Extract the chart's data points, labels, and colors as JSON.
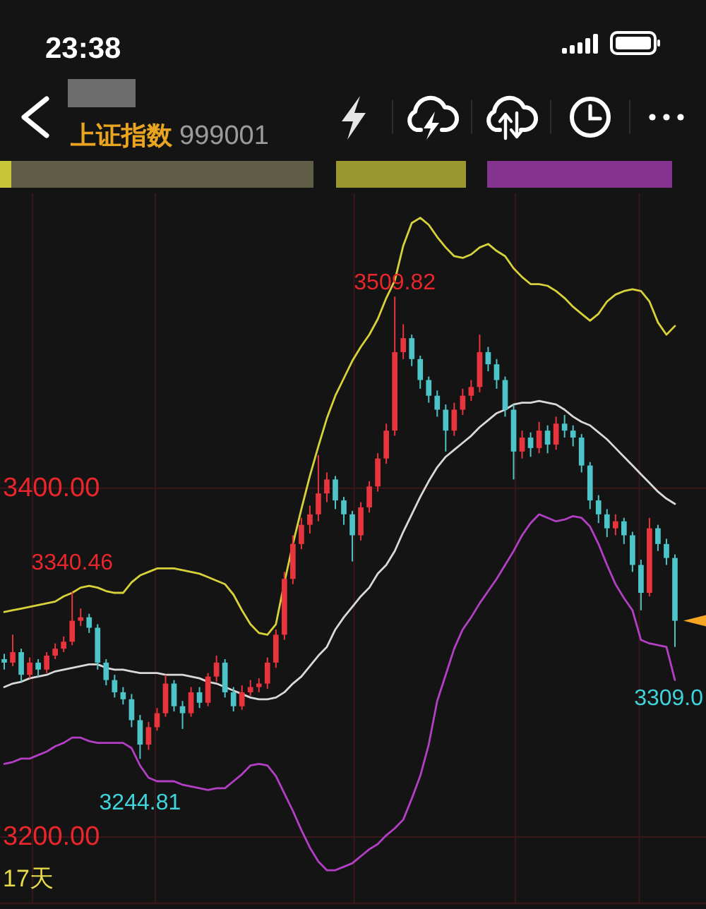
{
  "chart_data": {
    "type": "candlestick",
    "title": "上证指数",
    "subtitle": "999001",
    "categories": [
      null,
      null,
      null,
      null,
      null,
      null,
      null,
      null,
      null,
      null,
      null,
      null,
      null,
      null,
      null,
      null,
      null,
      null,
      null,
      null,
      null,
      null,
      null,
      null,
      null,
      null,
      null,
      null,
      null,
      null,
      null,
      null,
      null,
      null,
      null,
      null,
      null,
      null,
      null,
      null,
      null,
      null,
      null,
      null,
      null,
      null,
      null,
      null,
      null,
      null,
      null,
      null,
      null,
      null,
      null,
      null,
      null,
      null,
      null,
      null,
      null,
      null,
      null,
      null,
      null,
      null,
      null,
      null,
      null,
      null,
      null,
      null,
      null,
      null,
      null,
      null,
      null,
      null,
      null,
      null
    ],
    "ohlc": [
      [
        3302,
        3305,
        3296,
        3300
      ],
      [
        3300,
        3316,
        3298,
        3306
      ],
      [
        3306,
        3308,
        3289,
        3293
      ],
      [
        3293,
        3303,
        3291,
        3300
      ],
      [
        3300,
        3302,
        3292,
        3296
      ],
      [
        3296,
        3306,
        3294,
        3304
      ],
      [
        3304,
        3311,
        3302,
        3308
      ],
      [
        3308,
        3315,
        3306,
        3312
      ],
      [
        3312,
        3340.46,
        3310,
        3324
      ],
      [
        3324,
        3331,
        3321,
        3326
      ],
      [
        3326,
        3328,
        3317,
        3320
      ],
      [
        3320,
        3322,
        3296,
        3300
      ],
      [
        3300,
        3302,
        3287,
        3290
      ],
      [
        3290,
        3293,
        3280,
        3283
      ],
      [
        3283,
        3286,
        3276,
        3279
      ],
      [
        3279,
        3282,
        3263,
        3267
      ],
      [
        3267,
        3270,
        3244.81,
        3253
      ],
      [
        3253,
        3266,
        3250,
        3263
      ],
      [
        3263,
        3274,
        3261,
        3271
      ],
      [
        3271,
        3293,
        3269,
        3288
      ],
      [
        3288,
        3290,
        3272,
        3275
      ],
      [
        3275,
        3278,
        3262,
        3271
      ],
      [
        3271,
        3286,
        3269,
        3283
      ],
      [
        3283,
        3286,
        3274,
        3277
      ],
      [
        3277,
        3294,
        3275,
        3292
      ],
      [
        3292,
        3304,
        3289,
        3300
      ],
      [
        3300,
        3302,
        3280,
        3283
      ],
      [
        3283,
        3286,
        3272,
        3275
      ],
      [
        3275,
        3287,
        3273,
        3283
      ],
      [
        3283,
        3290,
        3281,
        3286
      ],
      [
        3286,
        3291,
        3283,
        3288
      ],
      [
        3288,
        3303,
        3285,
        3300
      ],
      [
        3300,
        3319,
        3297,
        3316
      ],
      [
        3316,
        3352,
        3313,
        3348
      ],
      [
        3348,
        3373,
        3345,
        3368
      ],
      [
        3368,
        3383,
        3365,
        3379
      ],
      [
        3379,
        3390,
        3374,
        3385
      ],
      [
        3385,
        3419,
        3381,
        3397
      ],
      [
        3397,
        3409,
        3392,
        3405
      ],
      [
        3405,
        3407,
        3388,
        3393
      ],
      [
        3393,
        3395,
        3379,
        3385
      ],
      [
        3385,
        3387,
        3358,
        3373
      ],
      [
        3373,
        3392,
        3370,
        3389
      ],
      [
        3389,
        3404,
        3386,
        3401
      ],
      [
        3401,
        3420,
        3398,
        3417
      ],
      [
        3417,
        3437,
        3414,
        3433
      ],
      [
        3433,
        3509.82,
        3430,
        3478
      ],
      [
        3478,
        3494,
        3474,
        3486
      ],
      [
        3486,
        3488,
        3470,
        3474
      ],
      [
        3474,
        3476,
        3457,
        3462
      ],
      [
        3462,
        3464,
        3449,
        3453
      ],
      [
        3453,
        3456,
        3441,
        3445
      ],
      [
        3445,
        3448,
        3421,
        3433
      ],
      [
        3433,
        3449,
        3430,
        3445
      ],
      [
        3445,
        3457,
        3442,
        3453
      ],
      [
        3453,
        3462,
        3450,
        3458
      ],
      [
        3458,
        3488,
        3455,
        3478
      ],
      [
        3478,
        3481,
        3467,
        3471
      ],
      [
        3471,
        3474,
        3457,
        3462
      ],
      [
        3462,
        3464,
        3441,
        3445
      ],
      [
        3445,
        3448,
        3405,
        3421
      ],
      [
        3421,
        3433,
        3417,
        3429
      ],
      [
        3429,
        3432,
        3418,
        3423
      ],
      [
        3423,
        3438,
        3420,
        3433
      ],
      [
        3433,
        3436,
        3420,
        3425
      ],
      [
        3425,
        3441,
        3422,
        3437
      ],
      [
        3437,
        3442,
        3429,
        3433
      ],
      [
        3433,
        3436,
        3424,
        3429
      ],
      [
        3429,
        3431,
        3409,
        3413
      ],
      [
        3413,
        3415,
        3388,
        3393
      ],
      [
        3393,
        3396,
        3380,
        3385
      ],
      [
        3385,
        3388,
        3372,
        3377
      ],
      [
        3377,
        3385,
        3373,
        3381
      ],
      [
        3381,
        3383,
        3368,
        3373
      ],
      [
        3373,
        3375,
        3352,
        3356
      ],
      [
        3356,
        3359,
        3330,
        3340
      ],
      [
        3340,
        3383,
        3338,
        3377
      ],
      [
        3377,
        3379,
        3364,
        3368
      ],
      [
        3368,
        3371,
        3356,
        3360
      ],
      [
        3360,
        3362,
        3309.0,
        3324
      ]
    ],
    "colors": [
      "#4cc4c8",
      "#e8353d",
      "#4cc4c8",
      "#e8353d",
      "#4cc4c8",
      "#e8353d",
      "#e8353d",
      "#e8353d",
      "#e8353d",
      "#e8353d",
      "#4cc4c8",
      "#4cc4c8",
      "#4cc4c8",
      "#4cc4c8",
      "#4cc4c8",
      "#4cc4c8",
      "#4cc4c8",
      "#e8353d",
      "#e8353d",
      "#e8353d",
      "#4cc4c8",
      "#4cc4c8",
      "#e8353d",
      "#4cc4c8",
      "#e8353d",
      "#e8353d",
      "#4cc4c8",
      "#4cc4c8",
      "#e8353d",
      "#e8353d",
      "#e8353d",
      "#e8353d",
      "#e8353d",
      "#e8353d",
      "#e8353d",
      "#e8353d",
      "#e8353d",
      "#e8353d",
      "#e8353d",
      "#4cc4c8",
      "#4cc4c8",
      "#4cc4c8",
      "#e8353d",
      "#e8353d",
      "#e8353d",
      "#e8353d",
      "#e8353d",
      "#e8353d",
      "#4cc4c8",
      "#4cc4c8",
      "#4cc4c8",
      "#4cc4c8",
      "#4cc4c8",
      "#e8353d",
      "#e8353d",
      "#e8353d",
      "#e8353d",
      "#4cc4c8",
      "#4cc4c8",
      "#4cc4c8",
      "#4cc4c8",
      "#e8353d",
      "#4cc4c8",
      "#e8353d",
      "#4cc4c8",
      "#e8353d",
      "#4cc4c8",
      "#4cc4c8",
      "#4cc4c8",
      "#4cc4c8",
      "#4cc4c8",
      "#4cc4c8",
      "#e8353d",
      "#4cc4c8",
      "#4cc4c8",
      "#4cc4c8",
      "#e8353d",
      "#4cc4c8",
      "#4cc4c8",
      "#4cc4c8"
    ],
    "series": [
      {
        "type": "line",
        "color": "#d8d23a",
        "values": [
          3329,
          3330,
          3331,
          3332,
          3333,
          3334,
          3335,
          3338,
          3340,
          3343,
          3344,
          3343,
          3341,
          3340,
          3340,
          3346,
          3350,
          3352,
          3354,
          3354,
          3354,
          3353,
          3352,
          3351,
          3349,
          3347,
          3345,
          3339,
          3330,
          3322,
          3317,
          3316,
          3322,
          3346,
          3368,
          3388,
          3407,
          3424,
          3440,
          3453,
          3463,
          3473,
          3481,
          3488,
          3497,
          3509,
          3519,
          3539,
          3552,
          3555,
          3551,
          3544,
          3538,
          3533,
          3532,
          3534,
          3538,
          3540,
          3536,
          3533,
          3526,
          3521,
          3517,
          3517,
          3516,
          3513,
          3509,
          3504,
          3500,
          3496,
          3500,
          3507,
          3511,
          3513,
          3514,
          3513,
          3507,
          3495,
          3488,
          3493
        ]
      },
      {
        "type": "line",
        "color": "#d9d9d9",
        "values": [
          3286,
          3288,
          3289,
          3291,
          3292,
          3293,
          3295,
          3296,
          3297,
          3298,
          3299,
          3299,
          3297,
          3296,
          3296,
          3295,
          3294,
          3294,
          3294,
          3293,
          3293,
          3293,
          3292,
          3291,
          3289,
          3288,
          3286,
          3284,
          3282,
          3280,
          3279,
          3279,
          3280,
          3283,
          3288,
          3292,
          3298,
          3304,
          3309,
          3319,
          3326,
          3332,
          3338,
          3343,
          3351,
          3356,
          3364,
          3375,
          3385,
          3395,
          3404,
          3412,
          3418,
          3422,
          3426,
          3430,
          3435,
          3439,
          3443,
          3445,
          3448,
          3449,
          3449,
          3450,
          3449,
          3448,
          3445,
          3441,
          3438,
          3436,
          3432,
          3428,
          3423,
          3418,
          3413,
          3408,
          3403,
          3398,
          3394,
          3391
        ]
      },
      {
        "type": "line",
        "color": "#b23fc4",
        "values": [
          3242,
          3243,
          3245,
          3245,
          3247,
          3249,
          3252,
          3254,
          3257,
          3257,
          3255,
          3254,
          3254,
          3254,
          3254,
          3251,
          3241,
          3234,
          3232,
          3232,
          3232,
          3230,
          3229,
          3228,
          3227,
          3228,
          3228,
          3232,
          3236,
          3241,
          3242,
          3241,
          3235,
          3225,
          3215,
          3204,
          3194,
          3186,
          3181,
          3181,
          3183,
          3185,
          3189,
          3193,
          3196,
          3201,
          3205,
          3210,
          3222,
          3235,
          3253,
          3278,
          3293,
          3308,
          3319,
          3326,
          3334,
          3341,
          3348,
          3356,
          3364,
          3373,
          3380,
          3385,
          3383,
          3381,
          3382,
          3384,
          3383,
          3378,
          3368,
          3356,
          3345,
          3337,
          3330,
          3313,
          3311,
          3310,
          3309,
          3290
        ]
      }
    ],
    "ylim": [
      3162,
      3569
    ],
    "yticks": [
      {
        "value": 3400,
        "label": "3400.00"
      },
      {
        "value": 3200,
        "label": "3200.00"
      }
    ],
    "tick_labels": "y",
    "grid": "y",
    "annotations": [
      "23:38",
      {
        "text": "3509.82",
        "y": 3509.82
      },
      {
        "text": "3340.46",
        "y": 3340.46
      },
      {
        "text": "3244.81",
        "y": 3244.81
      },
      {
        "text": "3309.0",
        "y": 3309.0
      },
      "17天"
    ]
  }
}
